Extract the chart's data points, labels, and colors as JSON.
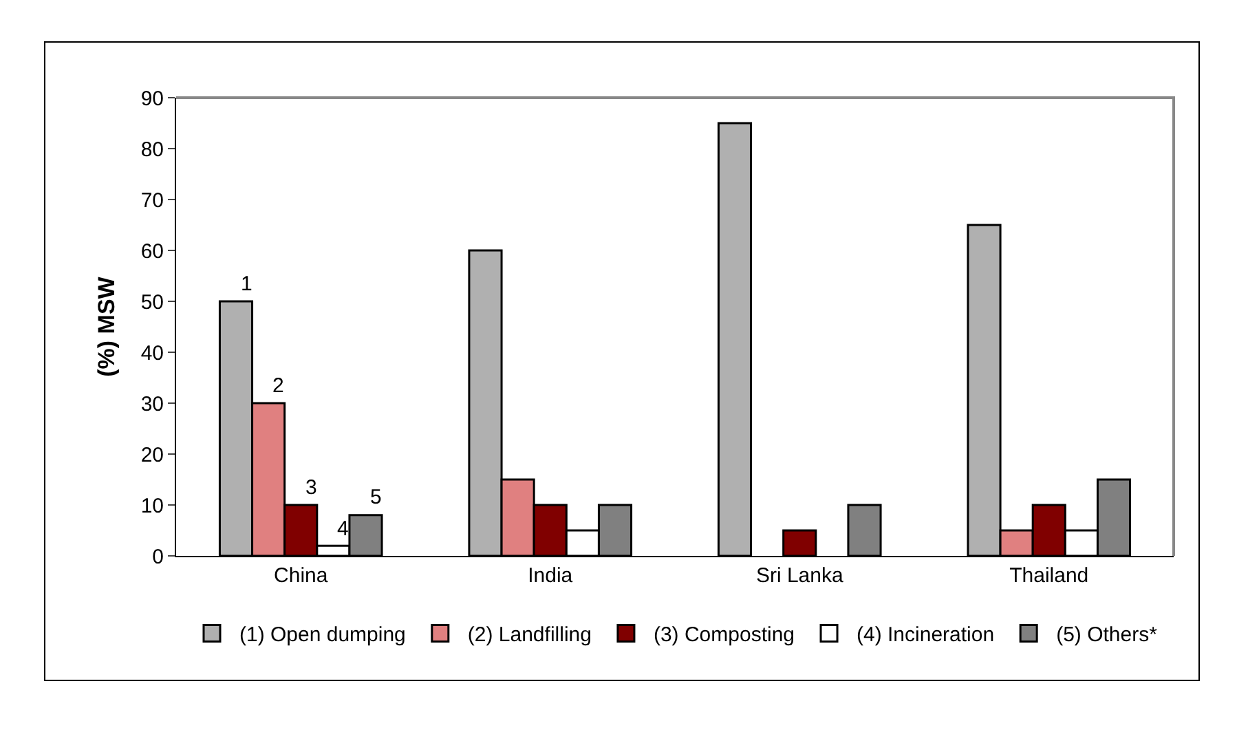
{
  "chart_data": {
    "type": "bar",
    "ylabel": "(%) MSW",
    "categories": [
      "China",
      "India",
      "Sri Lanka",
      "Thailand"
    ],
    "series": [
      {
        "name": "(1) Open dumping",
        "color": "#b0b0b0",
        "values": [
          50,
          60,
          85,
          65
        ]
      },
      {
        "name": "(2) Landfilling",
        "color": "#e08080",
        "values": [
          30,
          15,
          null,
          5
        ]
      },
      {
        "name": "(3) Composting",
        "color": "#800000",
        "values": [
          10,
          10,
          5,
          10
        ]
      },
      {
        "name": "(4) Incineration",
        "color": "#ffffff",
        "values": [
          2,
          5,
          null,
          5
        ]
      },
      {
        "name": "(5) Others*",
        "color": "#808080",
        "values": [
          8,
          10,
          10,
          15
        ]
      }
    ],
    "annotations": [
      "1",
      "2",
      "3",
      "4",
      "5"
    ],
    "ylim": [
      0,
      90
    ],
    "yticks": [
      0,
      10,
      20,
      30,
      40,
      50,
      60,
      70,
      80,
      90
    ],
    "grid": false,
    "legend": "bottom"
  }
}
